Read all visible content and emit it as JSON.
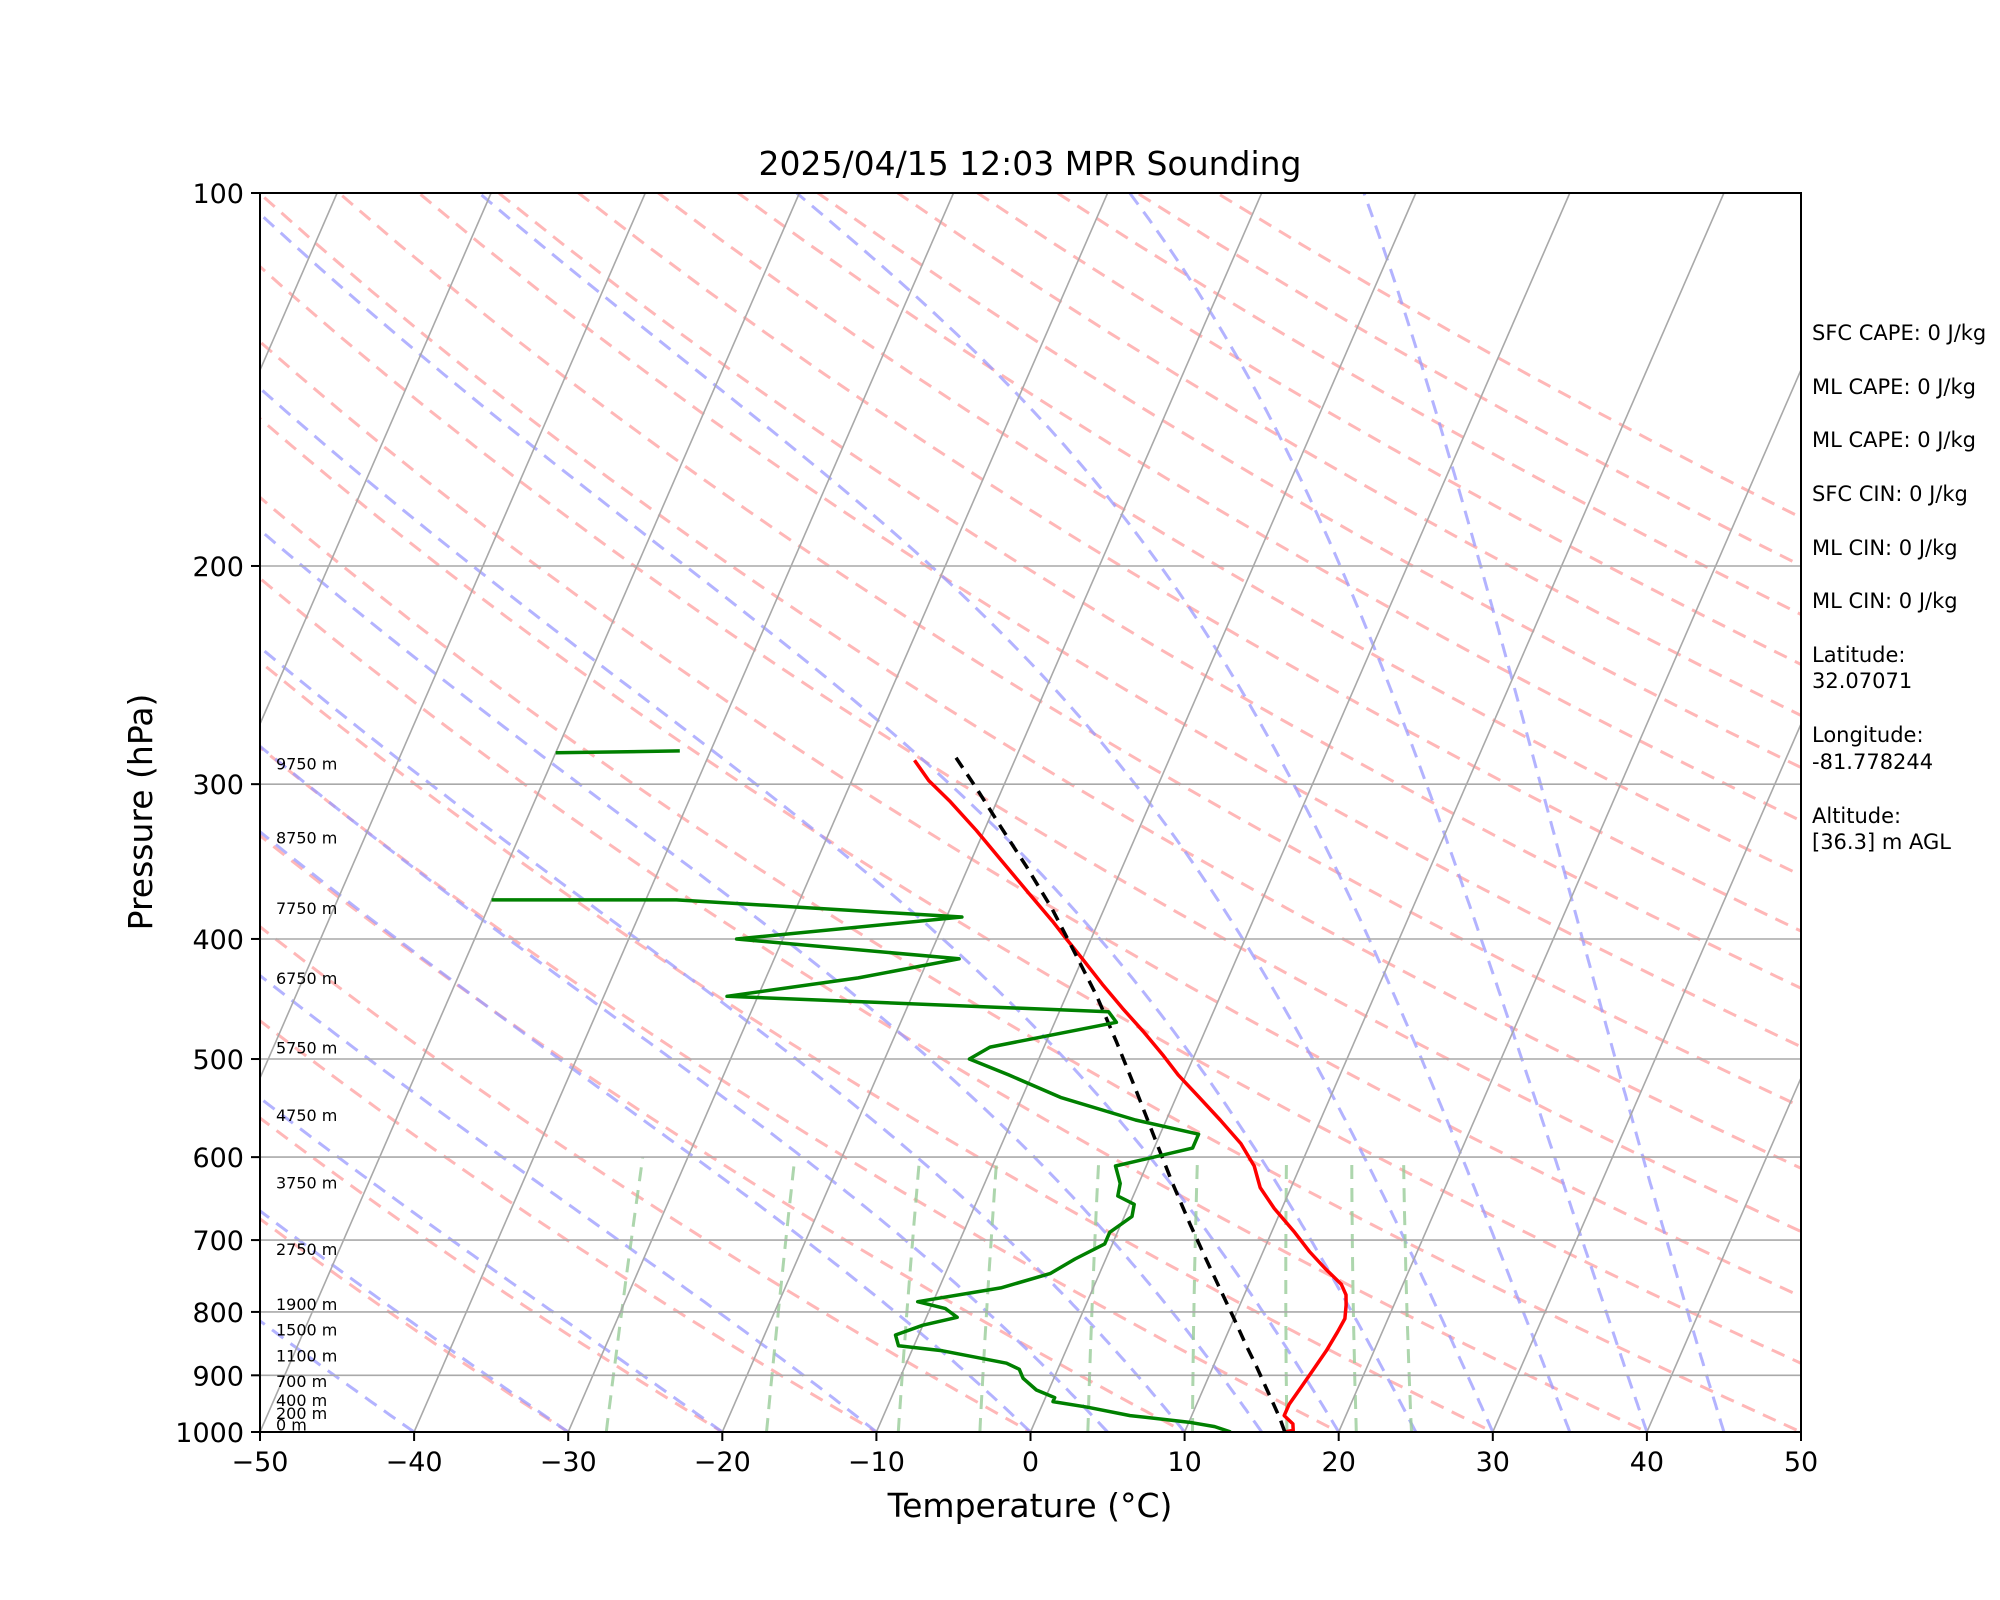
{
  "chart_data": {
    "type": "line",
    "title": "2025/04/15 12:03 MPR Sounding",
    "xlabel": "Temperature (°C)",
    "ylabel": "Pressure (hPa)",
    "xlim": [
      -50,
      50
    ],
    "ylim": [
      1000,
      100
    ],
    "y_scale": "log",
    "grid": true,
    "x_ticks": [
      "−50",
      "−40",
      "−30",
      "−20",
      "−10",
      "0",
      "10",
      "20",
      "30",
      "40",
      "50"
    ],
    "x_tick_values": [
      -50,
      -40,
      -30,
      -20,
      -10,
      0,
      10,
      20,
      30,
      40,
      50
    ],
    "y_ticks": [
      "100",
      "200",
      "300",
      "400",
      "500",
      "600",
      "700",
      "800",
      "900",
      "1000"
    ],
    "y_tick_values": [
      100,
      200,
      300,
      400,
      500,
      600,
      700,
      800,
      900,
      1000
    ],
    "height_labels": [
      {
        "text": "0 m",
        "p": 997
      },
      {
        "text": "200 m",
        "p": 976
      },
      {
        "text": "400 m",
        "p": 953
      },
      {
        "text": "700 m",
        "p": 920
      },
      {
        "text": "1100 m",
        "p": 877
      },
      {
        "text": "1500 m",
        "p": 836
      },
      {
        "text": "1900 m",
        "p": 797
      },
      {
        "text": "2750 m",
        "p": 720
      },
      {
        "text": "3750 m",
        "p": 636
      },
      {
        "text": "4750 m",
        "p": 561
      },
      {
        "text": "5750 m",
        "p": 495
      },
      {
        "text": "6750 m",
        "p": 435
      },
      {
        "text": "7750 m",
        "p": 382
      },
      {
        "text": "8750 m",
        "p": 335
      },
      {
        "text": "9750 m",
        "p": 292
      }
    ],
    "series": [
      {
        "color": "#ff0000",
        "points": [
          [
            16.5,
            1000
          ],
          [
            17.0,
            997
          ],
          [
            16.8,
            985
          ],
          [
            16.0,
            970
          ],
          [
            16.0,
            950
          ],
          [
            16.3,
            920
          ],
          [
            16.6,
            890
          ],
          [
            16.9,
            860
          ],
          [
            17.1,
            830
          ],
          [
            17.2,
            810
          ],
          [
            16.9,
            790
          ],
          [
            16.6,
            775
          ],
          [
            16.0,
            760
          ],
          [
            14.5,
            738
          ],
          [
            13.0,
            715
          ],
          [
            11.5,
            690
          ],
          [
            9.5,
            660
          ],
          [
            8.0,
            635
          ],
          [
            7.0,
            610
          ],
          [
            5.5,
            585
          ],
          [
            3.5,
            560
          ],
          [
            1.5,
            537
          ],
          [
            -0.5,
            515
          ],
          [
            -2.0,
            497
          ],
          [
            -4.0,
            475
          ],
          [
            -6.0,
            455
          ],
          [
            -8.0,
            435
          ],
          [
            -10.0,
            415
          ],
          [
            -11.6,
            400
          ],
          [
            -13.0,
            387
          ],
          [
            -15.5,
            366
          ],
          [
            -18.0,
            346
          ],
          [
            -20.5,
            327
          ],
          [
            -23.0,
            310
          ],
          [
            -25.0,
            298
          ],
          [
            -26.5,
            287
          ]
        ]
      },
      {
        "color": "#000000",
        "dashed": true,
        "points": [
          [
            16.5,
            1000
          ],
          [
            15.8,
            975
          ],
          [
            15.0,
            950
          ],
          [
            14.0,
            920
          ],
          [
            12.8,
            885
          ],
          [
            11.5,
            850
          ],
          [
            10.0,
            810
          ],
          [
            8.4,
            770
          ],
          [
            6.5,
            725
          ],
          [
            4.5,
            680
          ],
          [
            2.2,
            630
          ],
          [
            -0.2,
            580
          ],
          [
            -2.8,
            530
          ],
          [
            -5.4,
            485
          ],
          [
            -8.0,
            445
          ],
          [
            -10.7,
            410
          ],
          [
            -13.4,
            378
          ],
          [
            -16.2,
            350
          ],
          [
            -19.0,
            325
          ],
          [
            -21.6,
            303
          ],
          [
            -24.1,
            284
          ]
        ]
      },
      {
        "color": "#008000",
        "points": [
          [
            13.0,
            1000
          ],
          [
            11.8,
            990
          ],
          [
            10.0,
            982
          ],
          [
            6.0,
            970
          ],
          [
            3.0,
            955
          ],
          [
            0.6,
            945
          ],
          [
            0.6,
            938
          ],
          [
            -0.8,
            925
          ],
          [
            -2.0,
            905
          ],
          [
            -2.5,
            890
          ],
          [
            -3.5,
            880
          ],
          [
            -8.0,
            860
          ],
          [
            -11.0,
            852
          ],
          [
            -11.5,
            835
          ],
          [
            -10.0,
            820
          ],
          [
            -8.0,
            808
          ],
          [
            -9.0,
            795
          ],
          [
            -11.0,
            785
          ],
          [
            -6.0,
            765
          ],
          [
            -3.2,
            745
          ],
          [
            -2.0,
            725
          ],
          [
            -0.5,
            705
          ],
          [
            -0.5,
            690
          ],
          [
            0.5,
            670
          ],
          [
            0.3,
            655
          ],
          [
            -1.0,
            645
          ],
          [
            -1.2,
            630
          ],
          [
            -2.0,
            610
          ],
          [
            2.5,
            590
          ],
          [
            2.5,
            575
          ],
          [
            -2.0,
            560
          ],
          [
            -7.5,
            537
          ],
          [
            -11.5,
            515
          ],
          [
            -14.5,
            500
          ],
          [
            -13.5,
            489
          ],
          [
            -6.0,
            467
          ],
          [
            -6.8,
            458
          ],
          [
            -32.0,
            445
          ],
          [
            -24.0,
            430
          ],
          [
            -18.0,
            415
          ],
          [
            -33.0,
            400
          ],
          [
            -19.0,
            384
          ],
          [
            -38.0,
            372
          ],
          [
            -50.0,
            372
          ]
        ]
      },
      {
        "color": "#008000",
        "points": [
          [
            -50.0,
            283
          ],
          [
            -42.0,
            282
          ]
        ]
      }
    ]
  },
  "info_lines": [
    "SFC CAPE: 0 J/kg",
    "ML CAPE: 0 J/kg",
    "ML CAPE: 0 J/kg",
    "SFC CIN: 0 J/kg",
    "ML CIN: 0 J/kg",
    "ML CIN: 0 J/kg",
    "Latitude:",
    "32.07071",
    "Longitude:",
    "-81.778244",
    "Altitude:",
    "[36.3] m AGL"
  ],
  "colors": {
    "isotherm": "#a9a9a9",
    "dry_adiabat": "#ff9999",
    "moist_adiabat": "#9999ff",
    "mixing_ratio": "#99cc99"
  }
}
